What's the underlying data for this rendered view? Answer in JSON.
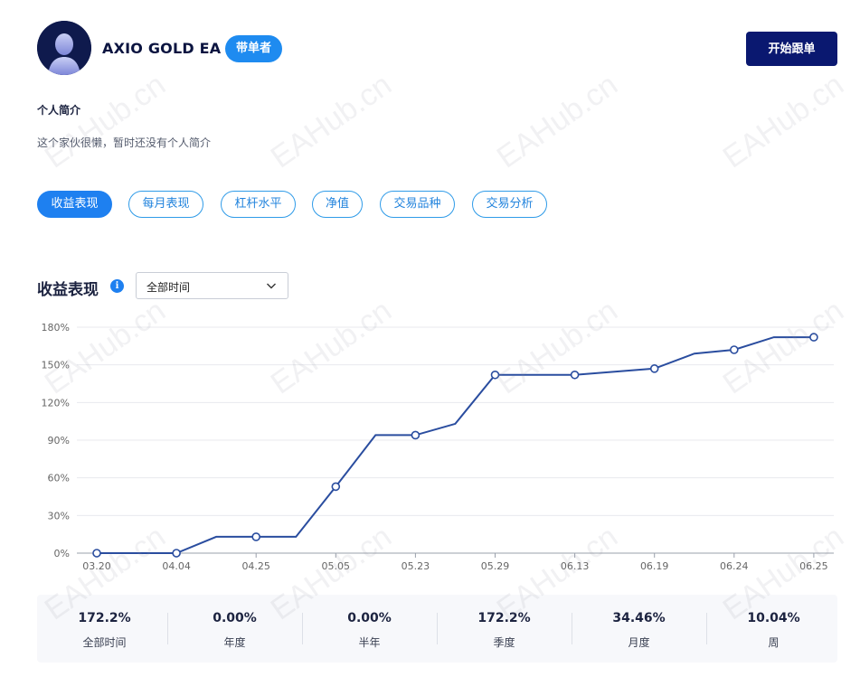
{
  "header": {
    "trader_name": "AXIO GOLD EA",
    "role_badge": "带单者",
    "follow_button": "开始跟单"
  },
  "bio": {
    "title": "个人简介",
    "text": "这个家伙很懒，暂时还没有个人简介"
  },
  "tabs": [
    {
      "label": "收益表现",
      "active": true
    },
    {
      "label": "每月表现",
      "active": false
    },
    {
      "label": "杠杆水平",
      "active": false
    },
    {
      "label": "净值",
      "active": false
    },
    {
      "label": "交易品种",
      "active": false
    },
    {
      "label": "交易分析",
      "active": false
    }
  ],
  "section": {
    "title": "收益表现",
    "range_select": "全部时间"
  },
  "watermark": "EAHub.cn",
  "chart_data": {
    "type": "line",
    "x_labels": [
      "03.20",
      "04.04",
      "04.25",
      "05.05",
      "05.23",
      "05.29",
      "06.13",
      "06.19",
      "06.24",
      "06.25"
    ],
    "y_ticks": [
      "0%",
      "30%",
      "60%",
      "90%",
      "120%",
      "150%",
      "180%"
    ],
    "ylim": [
      0,
      180
    ],
    "line_color": "#2a4d9f",
    "series": [
      {
        "points": [
          {
            "x": 0,
            "y": 0,
            "marker": true
          },
          {
            "x": 1,
            "y": 0,
            "marker": true
          },
          {
            "x": 1.5,
            "y": 13,
            "marker": false
          },
          {
            "x": 2,
            "y": 13,
            "marker": true
          },
          {
            "x": 2.5,
            "y": 13,
            "marker": false
          },
          {
            "x": 3,
            "y": 53,
            "marker": true
          },
          {
            "x": 3.5,
            "y": 94,
            "marker": false
          },
          {
            "x": 4,
            "y": 94,
            "marker": true
          },
          {
            "x": 4.5,
            "y": 103,
            "marker": false
          },
          {
            "x": 5,
            "y": 142,
            "marker": true
          },
          {
            "x": 6,
            "y": 142,
            "marker": true
          },
          {
            "x": 7,
            "y": 147,
            "marker": true
          },
          {
            "x": 7.5,
            "y": 159,
            "marker": false
          },
          {
            "x": 8,
            "y": 162,
            "marker": true
          },
          {
            "x": 8.5,
            "y": 172,
            "marker": false
          },
          {
            "x": 9,
            "y": 172,
            "marker": true
          }
        ]
      }
    ]
  },
  "stats": [
    {
      "value": "172.2%",
      "label": "全部时间"
    },
    {
      "value": "0.00%",
      "label": "年度"
    },
    {
      "value": "0.00%",
      "label": "半年"
    },
    {
      "value": "172.2%",
      "label": "季度"
    },
    {
      "value": "34.46%",
      "label": "月度"
    },
    {
      "value": "10.04%",
      "label": "周"
    }
  ]
}
